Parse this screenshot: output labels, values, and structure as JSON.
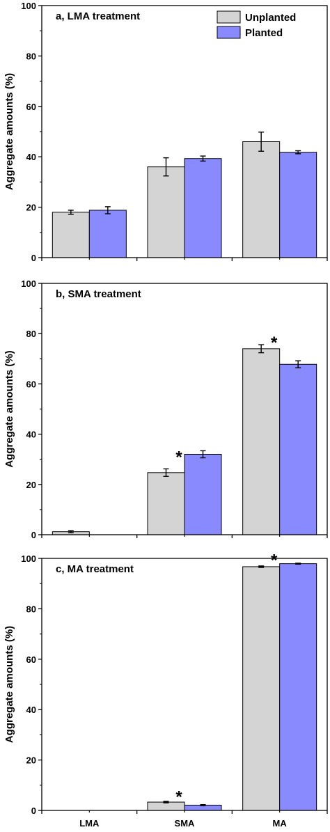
{
  "legend": {
    "items": [
      {
        "label": "Unplanted",
        "color": "#d4d4d4"
      },
      {
        "label": "Planted",
        "color": "#8a8aff"
      }
    ],
    "placement": "top-right of panel a"
  },
  "chart_data": [
    {
      "type": "bar",
      "title": "a, LMA treatment",
      "xlabel": "",
      "ylabel": "Aggregate amounts (%)",
      "categories": [
        "LMA",
        "SMA",
        "MA"
      ],
      "ylim": [
        0,
        100
      ],
      "yticks": [
        "0",
        "20",
        "40",
        "60",
        "80",
        "100"
      ],
      "xtick_labels_shown": false,
      "series": [
        {
          "name": "Unplanted",
          "color": "#d4d4d4",
          "values": [
            18.0,
            36.0,
            46.0
          ],
          "errors": [
            0.8,
            3.6,
            3.8
          ]
        },
        {
          "name": "Planted",
          "color": "#8a8aff",
          "values": [
            18.8,
            39.3,
            41.8
          ],
          "errors": [
            1.4,
            1.0,
            0.6
          ]
        }
      ],
      "annotations": []
    },
    {
      "type": "bar",
      "title": "b, SMA treatment",
      "xlabel": "",
      "ylabel": "Aggregate amounts (%)",
      "categories": [
        "LMA",
        "SMA",
        "MA"
      ],
      "ylim": [
        0,
        100
      ],
      "yticks": [
        "0",
        "20",
        "40",
        "60",
        "80",
        "100"
      ],
      "xtick_labels_shown": false,
      "series": [
        {
          "name": "Unplanted",
          "color": "#d4d4d4",
          "values": [
            1.2,
            24.7,
            74.0
          ],
          "errors": [
            0.4,
            1.5,
            1.6
          ]
        },
        {
          "name": "Planted",
          "color": "#8a8aff",
          "values": [
            0,
            32.0,
            67.8
          ],
          "errors": [
            0,
            1.4,
            1.4
          ]
        }
      ],
      "annotations": [
        {
          "text": "*",
          "category": "SMA",
          "y": 31.5
        },
        {
          "text": "*",
          "category": "MA",
          "y": 77.0
        }
      ]
    },
    {
      "type": "bar",
      "title": "c, MA treatment",
      "xlabel": "",
      "ylabel": "Aggregate amounts (%)",
      "categories": [
        "LMA",
        "SMA",
        "MA"
      ],
      "ylim": [
        0,
        100
      ],
      "yticks": [
        "0",
        "20",
        "40",
        "60",
        "80",
        "100"
      ],
      "xtick_labels_shown": true,
      "series": [
        {
          "name": "Unplanted",
          "color": "#d4d4d4",
          "values": [
            0,
            3.3,
            96.7
          ],
          "errors": [
            0,
            0.3,
            0.3
          ]
        },
        {
          "name": "Planted",
          "color": "#8a8aff",
          "values": [
            0,
            2.1,
            97.9
          ],
          "errors": [
            0,
            0.2,
            0.2
          ]
        }
      ],
      "annotations": [
        {
          "text": "*",
          "category": "SMA",
          "y": 6.0
        },
        {
          "text": "*",
          "category": "MA",
          "y": 99.8
        }
      ]
    }
  ]
}
